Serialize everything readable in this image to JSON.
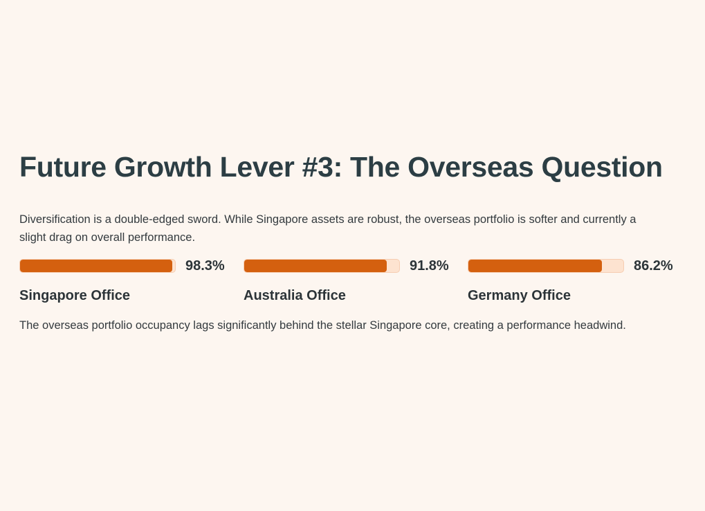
{
  "slide": {
    "title": "Future Growth Lever #3: The Overseas Question",
    "intro": "Diversification is a double-edged sword. While Singapore assets are robust, the overseas portfolio is softer and currently a slight drag on overall performance.",
    "note": "The overseas portfolio occupancy lags significantly behind the stellar Singapore core, creating a performance headwind."
  },
  "colors": {
    "background": "#fdf6f0",
    "bar_fill": "#d4600f",
    "bar_track": "#fde3d0"
  },
  "occupancy": [
    {
      "label": "Singapore Office",
      "value": 98.3,
      "display": "98.3%"
    },
    {
      "label": "Australia Office",
      "value": 91.8,
      "display": "91.8%"
    },
    {
      "label": "Germany Office",
      "value": 86.2,
      "display": "86.2%"
    }
  ]
}
